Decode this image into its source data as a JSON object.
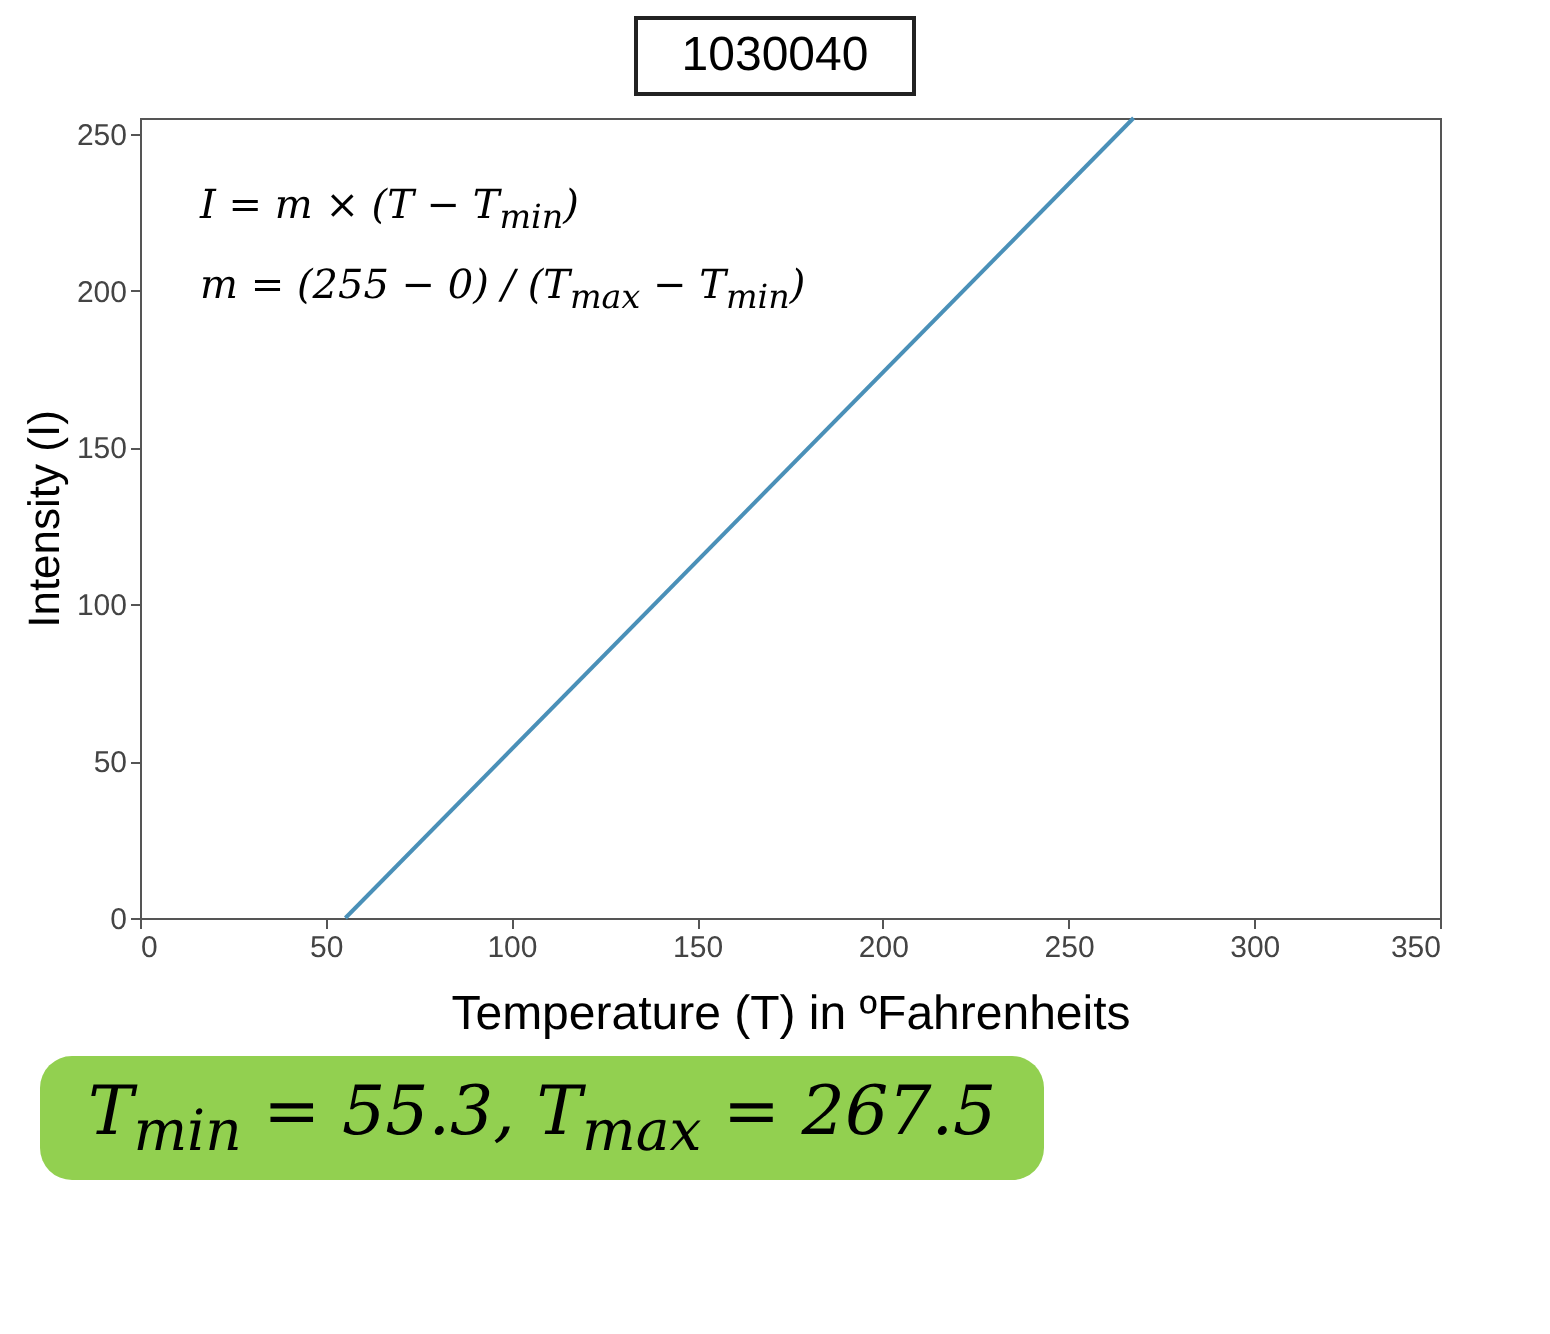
{
  "chart_data": {
    "type": "line",
    "title": "1030040",
    "xlabel": "Temperature (T) in ºFahrenheits",
    "ylabel": "Intensity (I)",
    "annotations": [
      "I = m × (T − T$_{min}$)",
      "m = (255 − 0) / (T$_{max}$ − T$_{min}$)",
      "T$_{min}$ = 55.3, T$_{max}$ = 267.5"
    ],
    "series": [
      {
        "color": "#4a90b8",
        "x": [
          55.3,
          267.5
        ],
        "values": [
          0,
          255
        ]
      }
    ],
    "xlim": [
      0,
      350
    ],
    "xticks": [
      0,
      50,
      100,
      150,
      200,
      250,
      300,
      350
    ],
    "ylim": [
      0,
      255
    ],
    "yticks": [
      0,
      50,
      100,
      150,
      200,
      250
    ],
    "grid": false
  }
}
